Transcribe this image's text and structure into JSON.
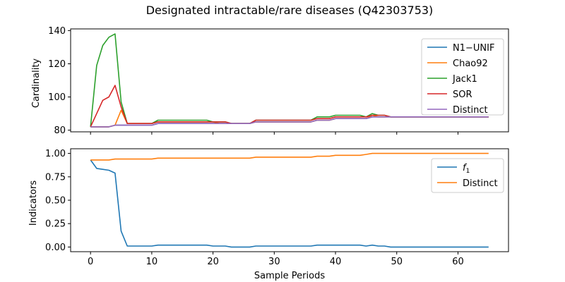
{
  "chart_data": {
    "type": "line",
    "title": "Designated intractable/rare diseases (Q42303753)",
    "xlabel": "Sample Periods",
    "x_ticks": [
      0,
      10,
      20,
      30,
      40,
      50,
      60
    ],
    "xlim": [
      -3.25,
      68.25
    ],
    "panels": [
      {
        "ylabel": "Cardinality",
        "ylim": [
          79,
          141
        ],
        "y_ticks": [
          80,
          100,
          120,
          140
        ],
        "legend_position": "upper right",
        "series": [
          {
            "name": "N1−UNIF",
            "color": "#1f77b4",
            "x": [
              0,
              1,
              2,
              3,
              4,
              5,
              6,
              10,
              11,
              20,
              21,
              22,
              23,
              26,
              27,
              36,
              37,
              39,
              40,
              44,
              45,
              46,
              47,
              48,
              49,
              65
            ],
            "y": [
              82,
              82,
              82,
              82,
              83,
              83,
              83,
              83,
              84,
              84,
              84,
              84,
              84,
              84,
              85,
              85,
              86,
              86,
              87,
              87,
              87,
              88,
              88,
              88,
              88,
              88
            ]
          },
          {
            "name": "Chao92",
            "color": "#ff7f0e",
            "x": [
              0,
              1,
              2,
              3,
              4,
              5,
              6,
              10,
              11,
              20,
              21,
              22,
              23,
              26,
              27,
              36,
              37,
              39,
              40,
              44,
              45,
              46,
              47,
              48,
              49,
              65
            ],
            "y": [
              82,
              82,
              82,
              82,
              83,
              92,
              84,
              84,
              85,
              85,
              84,
              84,
              84,
              84,
              85,
              85,
              86,
              86,
              87,
              87,
              87,
              89,
              88,
              88,
              88,
              88
            ]
          },
          {
            "name": "Jack1",
            "color": "#2ca02c",
            "x": [
              0,
              1,
              2,
              3,
              4,
              5,
              6,
              10,
              11,
              19,
              20,
              22,
              23,
              26,
              27,
              36,
              37,
              39,
              40,
              44,
              45,
              46,
              47,
              48,
              49,
              65
            ],
            "y": [
              82,
              119,
              131,
              136,
              138,
              97,
              84,
              84,
              86,
              86,
              85,
              85,
              84,
              84,
              86,
              86,
              88,
              88,
              89,
              89,
              88,
              90,
              89,
              89,
              88,
              88
            ]
          },
          {
            "name": "SOR",
            "color": "#d62728",
            "x": [
              0,
              1,
              2,
              3,
              4,
              5,
              6,
              10,
              11,
              19,
              20,
              22,
              23,
              26,
              27,
              36,
              37,
              39,
              40,
              44,
              45,
              46,
              47,
              48,
              49,
              65
            ],
            "y": [
              82,
              90,
              98,
              100,
              107,
              94,
              84,
              84,
              85,
              85,
              85,
              85,
              84,
              84,
              86,
              86,
              87,
              87,
              88,
              88,
              88,
              89,
              89,
              89,
              88,
              88
            ]
          },
          {
            "name": "Distinct",
            "color": "#9467bd",
            "x": [
              0,
              1,
              2,
              3,
              4,
              5,
              6,
              10,
              11,
              19,
              20,
              22,
              23,
              26,
              27,
              36,
              37,
              39,
              40,
              44,
              45,
              46,
              47,
              48,
              49,
              65
            ],
            "y": [
              82,
              82,
              82,
              82,
              83,
              83,
              83,
              83,
              84,
              84,
              84,
              84,
              84,
              84,
              85,
              85,
              86,
              86,
              87,
              87,
              87,
              88,
              88,
              88,
              88,
              88
            ]
          }
        ]
      },
      {
        "ylabel": "Indicators",
        "ylim": [
          -0.05,
          1.05
        ],
        "y_ticks": [
          0.0,
          0.25,
          0.5,
          0.75,
          1.0
        ],
        "y_tick_labels": [
          "0.00",
          "0.25",
          "0.50",
          "0.75",
          "1.00"
        ],
        "legend_position": "upper right",
        "series": [
          {
            "name": "f1",
            "color": "#1f77b4",
            "x": [
              0,
              1,
              2,
              3,
              4,
              5,
              6,
              10,
              11,
              19,
              20,
              22,
              23,
              26,
              27,
              36,
              37,
              44,
              45,
              46,
              47,
              48,
              49,
              65
            ],
            "y": [
              0.93,
              0.84,
              0.83,
              0.82,
              0.79,
              0.17,
              0.01,
              0.01,
              0.02,
              0.02,
              0.01,
              0.01,
              0.0,
              0.0,
              0.01,
              0.01,
              0.02,
              0.02,
              0.01,
              0.02,
              0.01,
              0.01,
              0.0,
              0.0
            ]
          },
          {
            "name": "Distinct",
            "color": "#ff7f0e",
            "x": [
              0,
              1,
              2,
              3,
              4,
              5,
              10,
              11,
              26,
              27,
              36,
              37,
              39,
              40,
              44,
              45,
              46,
              65
            ],
            "y": [
              0.93,
              0.93,
              0.93,
              0.93,
              0.94,
              0.94,
              0.94,
              0.95,
              0.95,
              0.96,
              0.96,
              0.97,
              0.97,
              0.98,
              0.98,
              0.99,
              1.0,
              1.0
            ]
          }
        ]
      }
    ]
  }
}
